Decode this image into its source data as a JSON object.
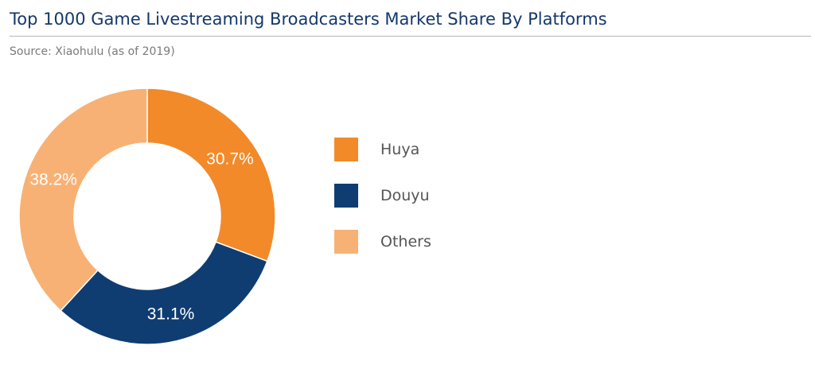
{
  "header": {
    "title": "Top 1000 Game Livestreaming Broadcasters Market Share By Platforms",
    "source": "Source: Xiaohulu (as of 2019)"
  },
  "chart_data": {
    "type": "pie",
    "variant": "donut",
    "title": "Top 1000 Game Livestreaming Broadcasters Market Share By Platforms",
    "subtitle": "Source: Xiaohulu (as of 2019)",
    "legend_position": "right",
    "categories": [
      "Huya",
      "Douyu",
      "Others"
    ],
    "values": [
      30.7,
      31.1,
      38.2
    ],
    "labels": [
      "30.7%",
      "31.1%",
      "38.2%"
    ],
    "colors": [
      "#f28a2a",
      "#0f3d72",
      "#f8b174"
    ]
  },
  "legend": {
    "items": [
      {
        "label": "Huya",
        "color": "#f28a2a"
      },
      {
        "label": "Douyu",
        "color": "#0f3d72"
      },
      {
        "label": "Others",
        "color": "#f8b174"
      }
    ]
  }
}
